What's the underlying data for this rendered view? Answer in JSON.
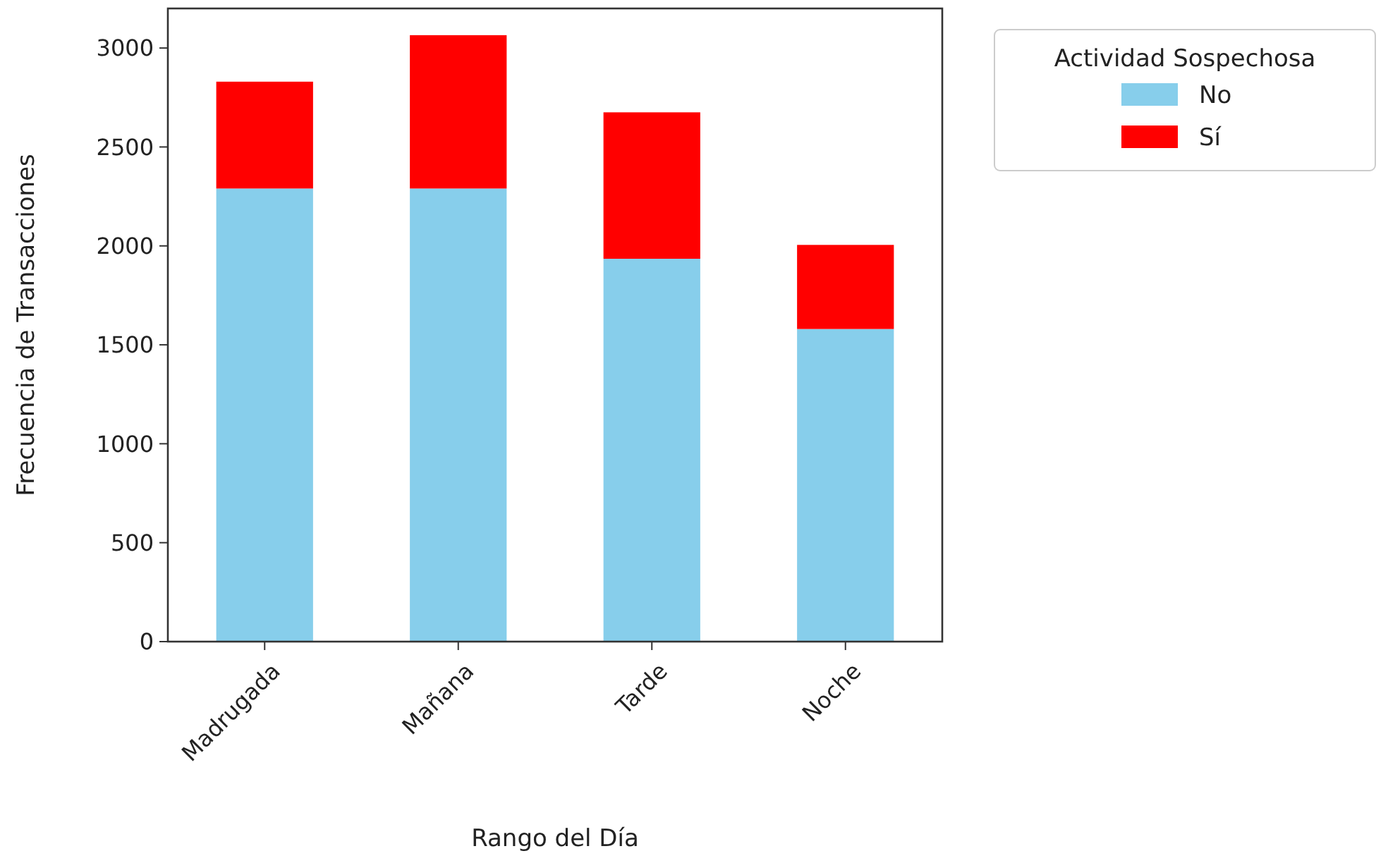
{
  "chart_data": {
    "type": "bar",
    "xlabel": "Rango del Día",
    "ylabel": "Frecuencia de Transacciones",
    "legend_title": "Actividad Sospechosa",
    "categories": [
      "Madrugada",
      "Mañana",
      "Tarde",
      "Noche"
    ],
    "series": [
      {
        "name": "No",
        "color": "#87ceeb",
        "values": [
          2290,
          2290,
          1935,
          1580
        ]
      },
      {
        "name": "Sí",
        "color": "#ff0000",
        "values": [
          540,
          775,
          740,
          425
        ]
      }
    ],
    "stacked": true,
    "ylim": [
      0,
      3200
    ],
    "yticks": [
      0,
      500,
      1000,
      1500,
      2000,
      2500,
      3000
    ],
    "legend": "top right"
  }
}
